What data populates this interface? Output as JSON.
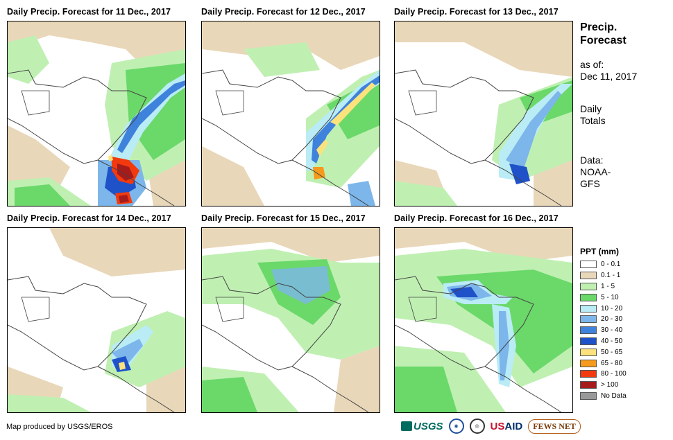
{
  "panels": [
    {
      "title": "Daily Precip. Forecast for 11 Dec., 2017"
    },
    {
      "title": "Daily Precip. Forecast for 12 Dec., 2017"
    },
    {
      "title": "Daily Precip. Forecast for 13 Dec., 2017"
    },
    {
      "title": "Daily Precip. Forecast for 14 Dec., 2017"
    },
    {
      "title": "Daily Precip. Forecast for 15 Dec., 2017"
    },
    {
      "title": "Daily Precip. Forecast for 16 Dec., 2017"
    }
  ],
  "info": {
    "heading_line1": "Precip.",
    "heading_line2": "Forecast",
    "asof_label": "as of:",
    "asof_date": "Dec 11, 2017",
    "daily_line1": "Daily",
    "daily_line2": "Totals",
    "data_label": "Data:",
    "data_source1": "NOAA-",
    "data_source2": "GFS"
  },
  "legend": {
    "title": "PPT (mm)",
    "items": [
      {
        "label": "0 - 0.1",
        "color": "#ffffff"
      },
      {
        "label": "0.1 - 1",
        "color": "#e9d7b9"
      },
      {
        "label": "1 - 5",
        "color": "#bff0b2"
      },
      {
        "label": "5 - 10",
        "color": "#6bd86a"
      },
      {
        "label": "10 - 20",
        "color": "#b9ecf5"
      },
      {
        "label": "20 - 30",
        "color": "#7cb6ea"
      },
      {
        "label": "30 - 40",
        "color": "#3f82dc"
      },
      {
        "label": "40 - 50",
        "color": "#1f52c9"
      },
      {
        "label": "50 - 65",
        "color": "#fbe27c"
      },
      {
        "label": "65 - 80",
        "color": "#f59a1c"
      },
      {
        "label": "80 - 100",
        "color": "#f23a0e"
      },
      {
        "label": "> 100",
        "color": "#a61b1b"
      },
      {
        "label": "No Data",
        "color": "#999999"
      }
    ]
  },
  "credit": "Map produced by USGS/EROS",
  "logos": {
    "usgs": "USGS",
    "usaid_prefix": "US",
    "usaid_suffix": "AID",
    "fews": "FEWS NET"
  }
}
